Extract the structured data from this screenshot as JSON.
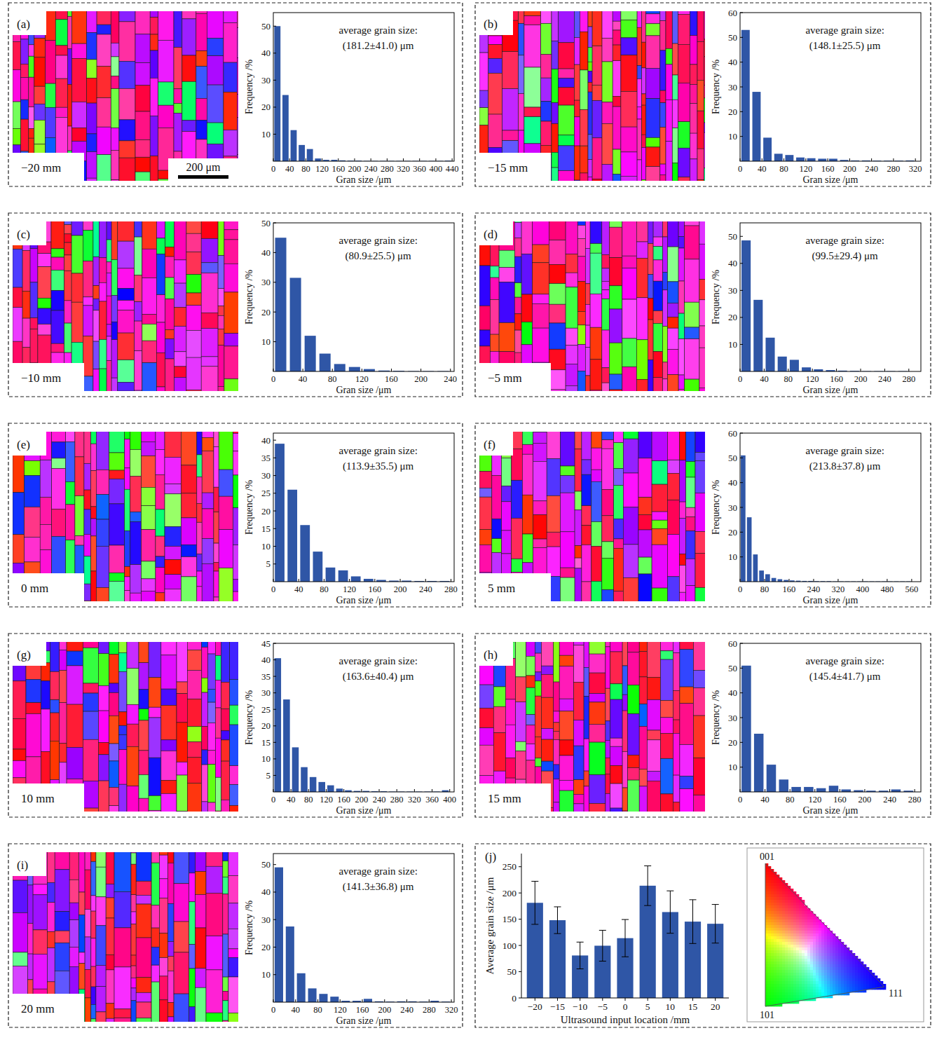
{
  "chart_data": [
    {
      "type": "histogram",
      "panel_label": "(a)",
      "location_label": "−20 mm",
      "scale_bar": "200 μm",
      "x_label": "Gran size /μm",
      "y_label": "Frequency /%",
      "annotations": [
        "average grain size:",
        "(181.2±41.0) μm"
      ],
      "color": "#2f56a6",
      "bins": [
        0,
        20,
        40,
        60,
        80,
        100,
        120,
        140,
        160,
        180,
        200,
        220,
        240,
        260,
        280,
        300,
        320,
        340,
        360,
        380,
        400,
        420,
        440
      ],
      "counts": [
        50,
        24.5,
        11.5,
        6,
        4.5,
        1,
        0.5,
        0.5,
        0.3,
        0.2,
        0.2,
        0.1,
        0.1,
        0.1,
        0.1,
        0.1,
        0.1,
        0.1,
        0.1,
        0.1,
        0.1,
        0.2
      ],
      "xlim": [
        0,
        445
      ],
      "xticks": [
        0,
        40,
        80,
        120,
        160,
        200,
        240,
        280,
        320,
        360,
        400,
        440
      ],
      "ylim": [
        0,
        55
      ],
      "yticks": [
        10,
        20,
        30,
        40,
        50
      ],
      "grid": false
    },
    {
      "type": "histogram",
      "panel_label": "(b)",
      "location_label": "−15 mm",
      "x_label": "Gran size /μm",
      "y_label": "Frequency /%",
      "annotations": [
        "average grain size:",
        "(148.1±25.5) μm"
      ],
      "color": "#2f56a6",
      "bins": [
        0,
        20,
        40,
        60,
        80,
        100,
        120,
        140,
        160,
        180,
        200,
        220,
        240,
        260,
        280,
        300,
        320
      ],
      "counts": [
        53,
        28,
        9.5,
        3,
        2.5,
        1.5,
        1.2,
        1,
        1,
        0.5,
        0.3,
        0.3,
        0.2,
        0.2,
        0.2,
        0.3
      ],
      "xlim": [
        0,
        330
      ],
      "xticks": [
        0,
        40,
        80,
        120,
        160,
        200,
        240,
        280,
        320
      ],
      "ylim": [
        0,
        60
      ],
      "yticks": [
        10,
        20,
        30,
        40,
        50,
        60
      ],
      "grid": false
    },
    {
      "type": "histogram",
      "panel_label": "(c)",
      "location_label": "−10 mm",
      "x_label": "Gran size /μm",
      "y_label": "Frequency /%",
      "annotations": [
        "average grain size:",
        "(80.9±25.5) μm"
      ],
      "color": "#2f56a6",
      "bins": [
        0,
        20,
        40,
        60,
        80,
        100,
        120,
        140,
        160,
        180,
        200,
        220,
        240
      ],
      "counts": [
        45,
        31.5,
        12,
        6,
        2.5,
        1.5,
        0.8,
        0.3,
        0.2,
        0.1,
        0.1,
        0.1
      ],
      "xlim": [
        0,
        245
      ],
      "xticks": [
        0,
        40,
        80,
        120,
        160,
        200,
        240
      ],
      "ylim": [
        0,
        50
      ],
      "yticks": [
        10,
        20,
        30,
        40,
        50
      ],
      "grid": false
    },
    {
      "type": "histogram",
      "panel_label": "(d)",
      "location_label": "−5 mm",
      "x_label": "Gran size /μm",
      "y_label": "Frequency /%",
      "annotations": [
        "average grain size:",
        "(99.5±29.4) μm"
      ],
      "color": "#2f56a6",
      "bins": [
        0,
        20,
        40,
        60,
        80,
        100,
        120,
        140,
        160,
        180,
        200,
        220,
        240,
        260,
        280
      ],
      "counts": [
        48.5,
        26.5,
        12.5,
        5.5,
        4.3,
        1.5,
        0.8,
        0.5,
        0.3,
        0.2,
        0.1,
        0.1,
        0.1,
        0.1
      ],
      "xlim": [
        0,
        300
      ],
      "xticks": [
        0,
        40,
        80,
        120,
        160,
        200,
        240,
        280
      ],
      "ylim": [
        0,
        55
      ],
      "yticks": [
        10,
        20,
        30,
        40,
        50
      ],
      "grid": false
    },
    {
      "type": "histogram",
      "panel_label": "(e)",
      "location_label": "0 mm",
      "x_label": "Gran size /μm",
      "y_label": "Frequency /%",
      "annotations": [
        "average grain size:",
        "(113.9±35.5) μm"
      ],
      "color": "#2f56a6",
      "bins": [
        0,
        20,
        40,
        60,
        80,
        100,
        120,
        140,
        160,
        180,
        200,
        220,
        240,
        260,
        280
      ],
      "counts": [
        39,
        26,
        16,
        8.5,
        4,
        3.2,
        1.5,
        0.8,
        0.5,
        0.3,
        0.3,
        0.2,
        0.2,
        0.2
      ],
      "xlim": [
        0,
        285
      ],
      "xticks": [
        0,
        40,
        80,
        120,
        160,
        200,
        240,
        280
      ],
      "ylim": [
        0,
        42
      ],
      "yticks": [
        5,
        10,
        15,
        20,
        25,
        30,
        35,
        40
      ],
      "grid": false
    },
    {
      "type": "histogram",
      "panel_label": "(f)",
      "location_label": "5 mm",
      "x_label": "Gran size /μm",
      "y_label": "Frequency /%",
      "annotations": [
        "average grain size:",
        "(213.8±37.8) μm"
      ],
      "color": "#2f56a6",
      "bins": [
        0,
        20,
        40,
        60,
        80,
        100,
        120,
        140,
        160,
        180,
        200,
        220,
        240,
        260,
        280,
        300,
        320,
        340,
        360,
        380,
        400,
        420,
        440,
        460,
        480,
        500,
        520,
        540,
        560
      ],
      "counts": [
        51,
        26,
        11,
        4.5,
        3,
        1.5,
        1,
        0.7,
        0.5,
        0.4,
        0.3,
        0.3,
        0.2,
        0.2,
        0.2,
        0.1,
        0.1,
        0.1,
        0.1,
        0.1,
        0.1,
        0.1,
        0.1,
        0.1,
        0.1,
        0.1,
        0.1,
        0.1
      ],
      "xlim": [
        0,
        590
      ],
      "xticks": [
        0,
        80,
        160,
        240,
        320,
        400,
        480,
        560
      ],
      "ylim": [
        0,
        60
      ],
      "yticks": [
        10,
        20,
        30,
        40,
        50,
        60
      ],
      "grid": false
    },
    {
      "type": "histogram",
      "panel_label": "(g)",
      "location_label": "10 mm",
      "x_label": "Gran size /μm",
      "y_label": "Frequency /%",
      "annotations": [
        "average grain size:",
        "(163.6±40.4) μm"
      ],
      "color": "#2f56a6",
      "bins": [
        0,
        20,
        40,
        60,
        80,
        100,
        120,
        140,
        160,
        180,
        200,
        220,
        240,
        260,
        280,
        300,
        320,
        340,
        360,
        380,
        400
      ],
      "counts": [
        40.5,
        28,
        13.5,
        7.5,
        4.5,
        3,
        2,
        1,
        0.5,
        0.3,
        0.3,
        0.2,
        0.2,
        0.1,
        0.1,
        0.1,
        0.1,
        0.1,
        0.1,
        0.5
      ],
      "xlim": [
        0,
        410
      ],
      "xticks": [
        0,
        40,
        80,
        120,
        160,
        200,
        240,
        280,
        320,
        360,
        400
      ],
      "ylim": [
        0,
        45
      ],
      "yticks": [
        5,
        10,
        15,
        20,
        25,
        30,
        35,
        40,
        45
      ],
      "grid": false
    },
    {
      "type": "histogram",
      "panel_label": "(h)",
      "location_label": "15 mm",
      "x_label": "Gran size /μm",
      "y_label": "Frequency /%",
      "annotations": [
        "average grain size:",
        "(145.4±41.7) μm"
      ],
      "color": "#2f56a6",
      "bins": [
        0,
        20,
        40,
        60,
        80,
        100,
        120,
        140,
        160,
        180,
        200,
        220,
        240,
        260,
        280
      ],
      "counts": [
        51,
        23.5,
        11,
        5,
        2,
        2,
        1.5,
        2.5,
        1,
        0.7,
        0.5,
        0.5,
        1,
        0.5
      ],
      "xlim": [
        0,
        290
      ],
      "xticks": [
        0,
        40,
        80,
        120,
        160,
        200,
        240,
        280
      ],
      "ylim": [
        0,
        60
      ],
      "yticks": [
        10,
        20,
        30,
        40,
        50,
        60
      ],
      "grid": false
    },
    {
      "type": "histogram",
      "panel_label": "(i)",
      "location_label": "20 mm",
      "x_label": "Gran size /μm",
      "y_label": "Frequency /%",
      "annotations": [
        "average grain size:",
        "(141.3±36.8) μm"
      ],
      "color": "#2f56a6",
      "bins": [
        0,
        20,
        40,
        60,
        80,
        100,
        120,
        140,
        160,
        180,
        200,
        220,
        240,
        260,
        280,
        300,
        320
      ],
      "counts": [
        49,
        27.5,
        10.5,
        5,
        3,
        2,
        0.5,
        0.5,
        1.2,
        0.3,
        0.2,
        0.3,
        0.3,
        0.2,
        0.5,
        0.2
      ],
      "xlim": [
        0,
        325
      ],
      "xticks": [
        0,
        40,
        80,
        120,
        160,
        200,
        240,
        280,
        320
      ],
      "ylim": [
        0,
        54
      ],
      "yticks": [
        10,
        20,
        30,
        40,
        50
      ],
      "grid": false
    },
    {
      "type": "bar",
      "panel_label": "(j)",
      "x_label": "Ultrasound input location /mm",
      "y_label": "Average grain size /μm",
      "color": "#2f56a6",
      "categories": [
        "−20",
        "−15",
        "−10",
        "−5",
        "0",
        "5",
        "10",
        "15",
        "20"
      ],
      "values": [
        181.2,
        148.1,
        80.9,
        99.5,
        113.9,
        213.8,
        163.6,
        145.4,
        141.3
      ],
      "errors": [
        41.0,
        25.5,
        25.5,
        29.4,
        35.5,
        37.8,
        40.4,
        41.7,
        36.8
      ],
      "ylim": [
        0,
        275
      ],
      "yticks": [
        0,
        50,
        100,
        150,
        200,
        250
      ],
      "grid": false,
      "color_key_labels": [
        "001",
        "101",
        "111"
      ]
    }
  ]
}
